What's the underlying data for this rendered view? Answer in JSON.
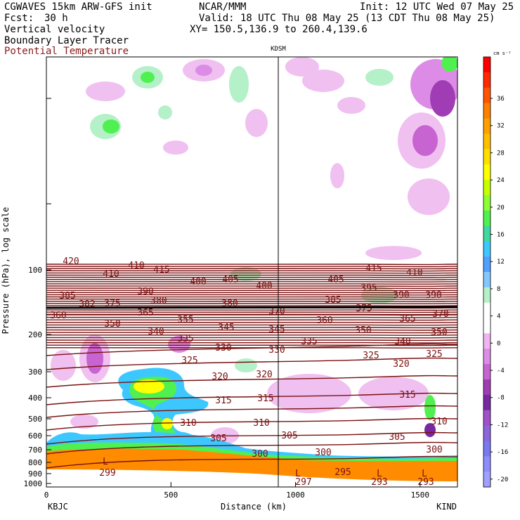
{
  "header": {
    "model": "CGWAVES 15km ARW-GFS init",
    "org": "NCAR/MMM",
    "init": "Init: 12 UTC Wed 07 May 25",
    "fcst_label": "Fcst:",
    "fcst_value": "30 h",
    "valid": "Valid: 18 UTC Thu 08 May 25 (13 CDT Thu 08 May 25)",
    "field1": "Vertical velocity",
    "field2": "Boundary Layer Tracer",
    "field3": "Potential Temperature",
    "xy": "XY= 150.5,136.9 to 260.4,139.6",
    "field3_color": "#8b1a1a"
  },
  "chart_data": {
    "type": "cross-section",
    "xlabel": "Distance (km)",
    "ylabel": "Pressure (hPa), log scale",
    "x_ticks": [
      0,
      500,
      1000,
      1500
    ],
    "xlim": [
      0,
      1650
    ],
    "y_ticks": [
      100,
      200,
      300,
      400,
      500,
      600,
      700,
      800,
      900,
      1000
    ],
    "y_scale": "log",
    "station_left": "KBJC",
    "station_right": "KIND",
    "station_mid": "KDSM",
    "station_mid_x": 940,
    "colorbar": {
      "units": "cm s⁻¹",
      "labels": [
        36,
        32,
        28,
        24,
        20,
        16,
        12,
        8,
        4,
        0,
        -4,
        -8,
        -12,
        -16,
        -20
      ],
      "colors": [
        "#ff0000",
        "#ff2a00",
        "#ff5500",
        "#ff7f00",
        "#ff9f00",
        "#ffbf00",
        "#ffdf00",
        "#ffff00",
        "#c8ff00",
        "#8cff32",
        "#50f050",
        "#40d8a0",
        "#3cc8ff",
        "#50a0ff",
        "#82c8ff",
        "#b4f0c8",
        "#ffffff",
        "#ffffff",
        "#f0b4f0",
        "#dc8ce6",
        "#c864d2",
        "#a03cb4",
        "#7828a0",
        "#a050c8",
        "#8c64dc",
        "#7878f0",
        "#8c8cff",
        "#a0a0ff"
      ]
    },
    "theta_labels": [
      "420",
      "410",
      "415",
      "410",
      "415",
      "410",
      "400",
      "405",
      "400",
      "405",
      "395",
      "390",
      "390",
      "390",
      "385",
      "385",
      "382",
      "375",
      "380",
      "380",
      "375",
      "370",
      "365",
      "370",
      "360",
      "360",
      "365",
      "355",
      "350",
      "345",
      "350",
      "350",
      "340",
      "345",
      "340",
      "335",
      "335",
      "330",
      "330",
      "325",
      "325",
      "320",
      "325",
      "320",
      "320",
      "315",
      "315",
      "315",
      "310",
      "310",
      "310",
      "305",
      "305",
      "305",
      "300",
      "300",
      "300",
      "295",
      "299",
      "297",
      "293",
      "293",
      "L",
      "L",
      "L",
      "L"
    ]
  }
}
